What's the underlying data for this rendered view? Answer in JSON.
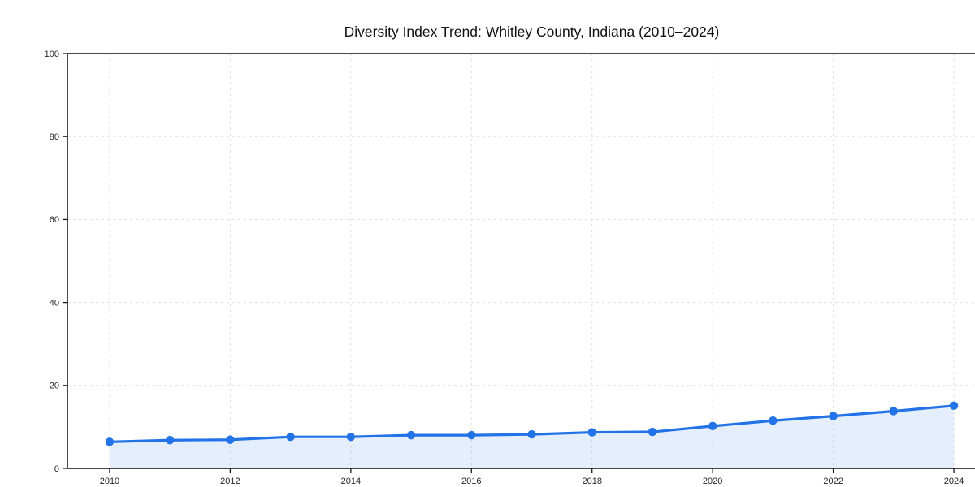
{
  "chart_data": {
    "type": "line",
    "title": "Diversity Index Trend: Whitley County, Indiana (2010–2024)",
    "series_name": "Diversity Index",
    "x": [
      2010,
      2011,
      2012,
      2013,
      2014,
      2015,
      2016,
      2017,
      2018,
      2019,
      2020,
      2021,
      2022,
      2023,
      2024
    ],
    "values": [
      6.4,
      6.8,
      6.9,
      7.6,
      7.6,
      8.0,
      8.0,
      8.2,
      8.7,
      8.8,
      10.2,
      11.5,
      12.6,
      13.8,
      15.1
    ],
    "xlabel": "",
    "ylabel": "",
    "xlim": [
      2009.3,
      2024.7
    ],
    "ylim": [
      0,
      100
    ],
    "x_ticks": [
      2010,
      2012,
      2014,
      2016,
      2018,
      2020,
      2022,
      2024
    ],
    "y_ticks": [
      0,
      20,
      40,
      60,
      80,
      100
    ],
    "grid": true,
    "grid_style": "dashed",
    "legend": "none",
    "marker": "circle",
    "area_fill": true,
    "colors": {
      "line": "#2272e8",
      "marker": "#2272e8",
      "fill": "rgba(34,114,232,0.12)",
      "grid": "#dedede",
      "axis": "#1a1a1a",
      "tick_text": "#262626",
      "title_text": "#111111",
      "background": "#ffffff"
    }
  }
}
